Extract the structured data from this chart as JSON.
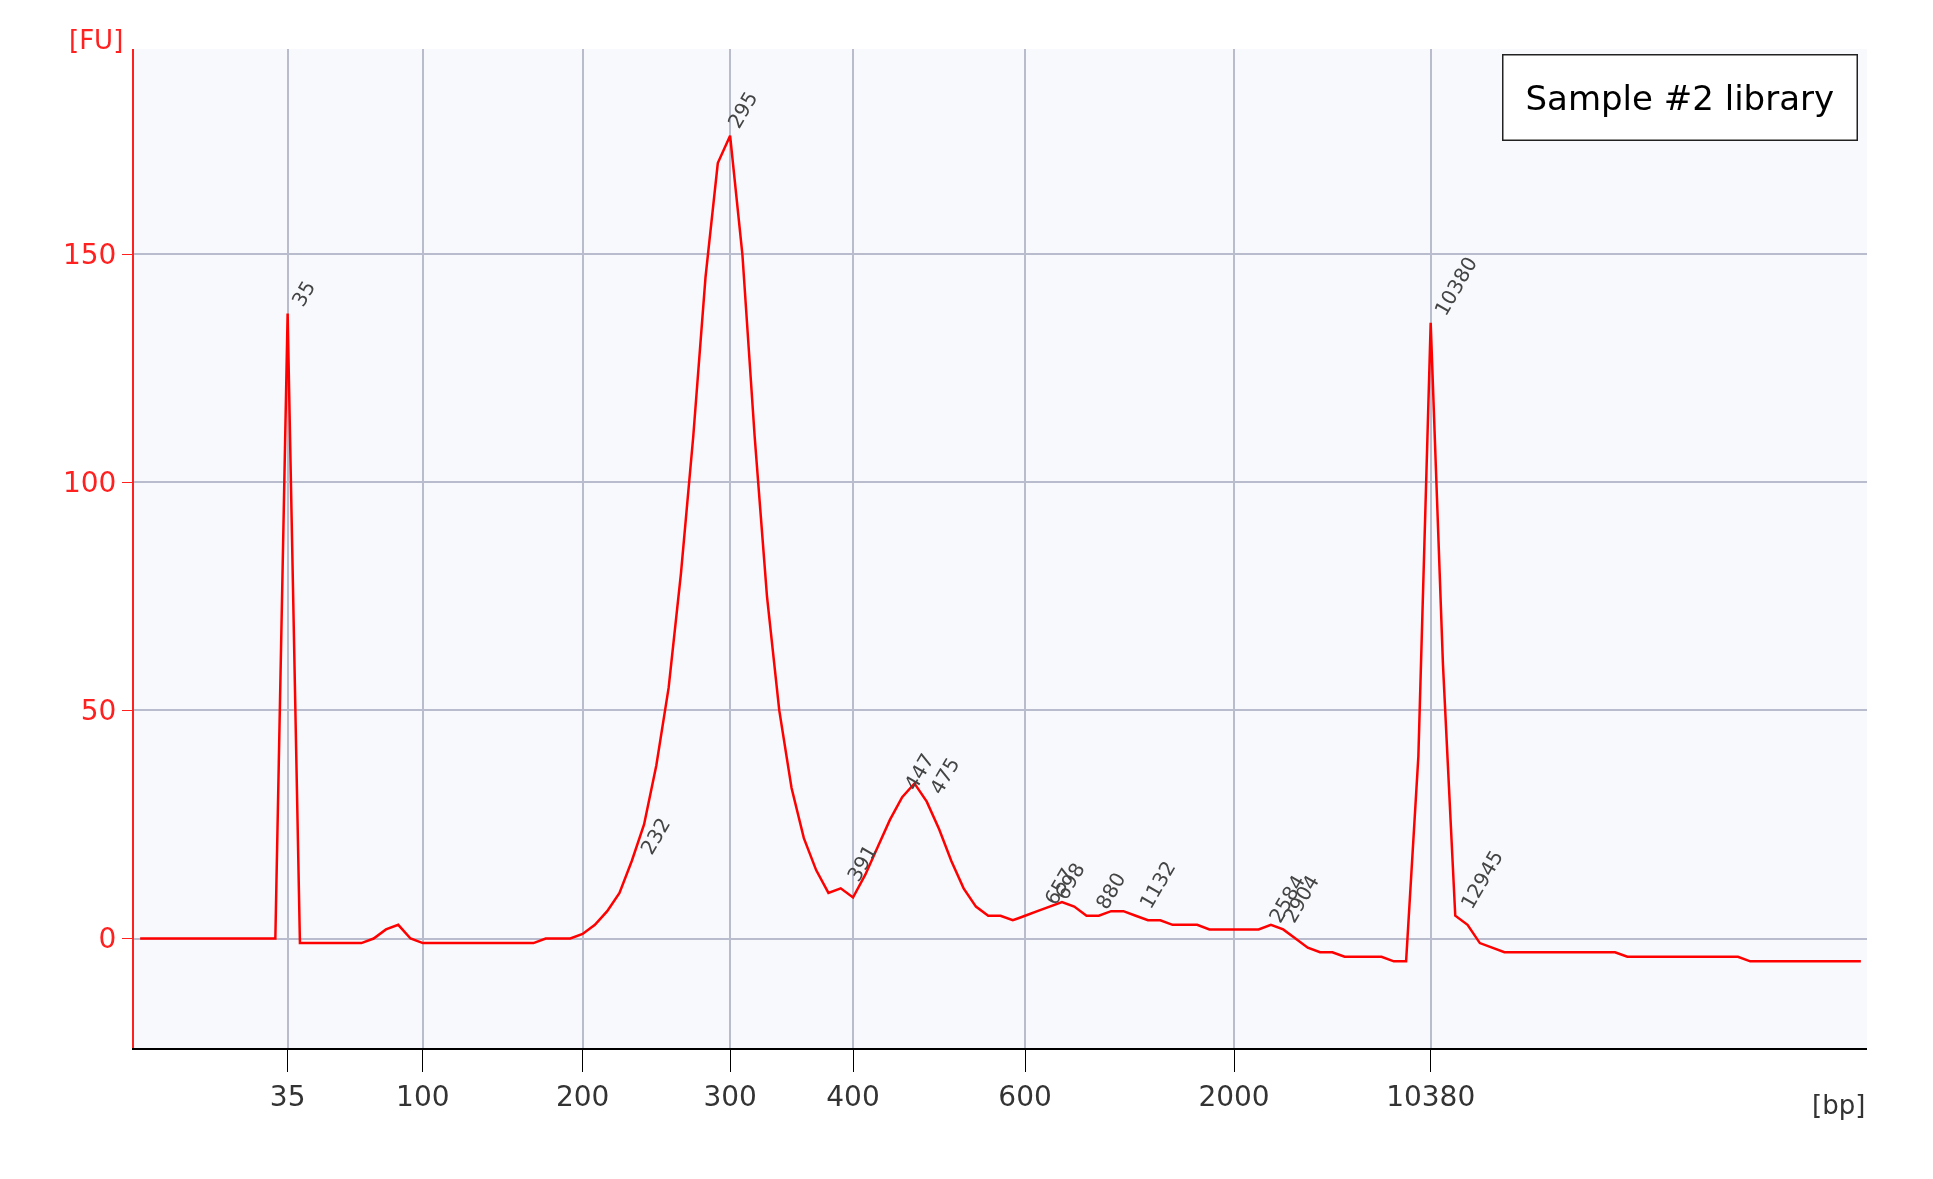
{
  "chart_data": {
    "type": "line",
    "title": "Sample #2 library",
    "xlabel": "[bp]",
    "ylabel": "[FU]",
    "categories": [
      null,
      null,
      null,
      null,
      null,
      null,
      null,
      null,
      null,
      null,
      null,
      null,
      "35",
      null,
      null,
      null,
      null,
      null,
      null,
      null,
      null,
      null,
      null,
      "100",
      null,
      null,
      null,
      null,
      null,
      null,
      null,
      null,
      null,
      null,
      null,
      null,
      "200",
      null,
      null,
      null,
      null,
      null,
      null,
      null,
      null,
      null,
      null,
      null,
      "300",
      null,
      null,
      null,
      null,
      null,
      null,
      null,
      null,
      null,
      "400",
      null,
      null,
      null,
      null,
      null,
      null,
      null,
      null,
      null,
      null,
      null,
      null,
      null,
      "600",
      null,
      null,
      null,
      null,
      null,
      null,
      null,
      null,
      null,
      null,
      null,
      null,
      null,
      null,
      null,
      null,
      "2000",
      null,
      null,
      null,
      null,
      null,
      null,
      null,
      null,
      null,
      null,
      null,
      null,
      null,
      null,
      null,
      "10380",
      null,
      null,
      null,
      null,
      null,
      null,
      null,
      null,
      null,
      null,
      null,
      null,
      null,
      null,
      null,
      null,
      null,
      null,
      null,
      null,
      null,
      null,
      null,
      null,
      null,
      null,
      null,
      null,
      null,
      null,
      null,
      null,
      null,
      null,
      null
    ],
    "series": [
      {
        "color": "#ff0000",
        "values": [
          0,
          0,
          0,
          0,
          0,
          0,
          0,
          0,
          0,
          0,
          0,
          0,
          137,
          -1,
          -1,
          -1,
          -1,
          -1,
          -1,
          0,
          2,
          3,
          0,
          -1,
          -1,
          -1,
          -1,
          -1,
          -1,
          -1,
          -1,
          -1,
          -1,
          0,
          0,
          0,
          1,
          3,
          6,
          10,
          17,
          25,
          38,
          55,
          80,
          110,
          145,
          170,
          176,
          150,
          110,
          75,
          50,
          33,
          22,
          15,
          10,
          11,
          9,
          14,
          20,
          26,
          31,
          34,
          30,
          24,
          17,
          11,
          7,
          5,
          5,
          4,
          5,
          6,
          7,
          8,
          7,
          5,
          5,
          6,
          6,
          5,
          4,
          4,
          3,
          3,
          3,
          2,
          2,
          2,
          2,
          2,
          3,
          2,
          0,
          -2,
          -3,
          -3,
          -4,
          -4,
          -4,
          -4,
          -5,
          -5,
          40,
          135,
          60,
          5,
          3,
          -1,
          -2,
          -3,
          -3,
          -3,
          -3,
          -3,
          -3,
          -3,
          -3,
          -3,
          -3,
          -4,
          -4,
          -4,
          -4,
          -4,
          -4,
          -4,
          -4,
          -4,
          -4,
          -5,
          -5,
          -5,
          -5,
          -5,
          -5,
          -5,
          -5,
          -5,
          -5
        ]
      }
    ],
    "ylim": [
      -24,
      195
    ],
    "yticks": [
      0,
      50,
      100,
      150
    ],
    "grid": true,
    "line_style": "solid",
    "marker": "none",
    "annotations": [
      {
        "text": "35",
        "x": "35",
        "y": 137
      },
      "232",
      "295",
      "391",
      "447",
      "475",
      "657",
      "698",
      "880",
      "1132",
      "2584",
      "2904",
      {
        "text": "10380",
        "x": "10380",
        "y": 135
      },
      "12945"
    ]
  }
}
